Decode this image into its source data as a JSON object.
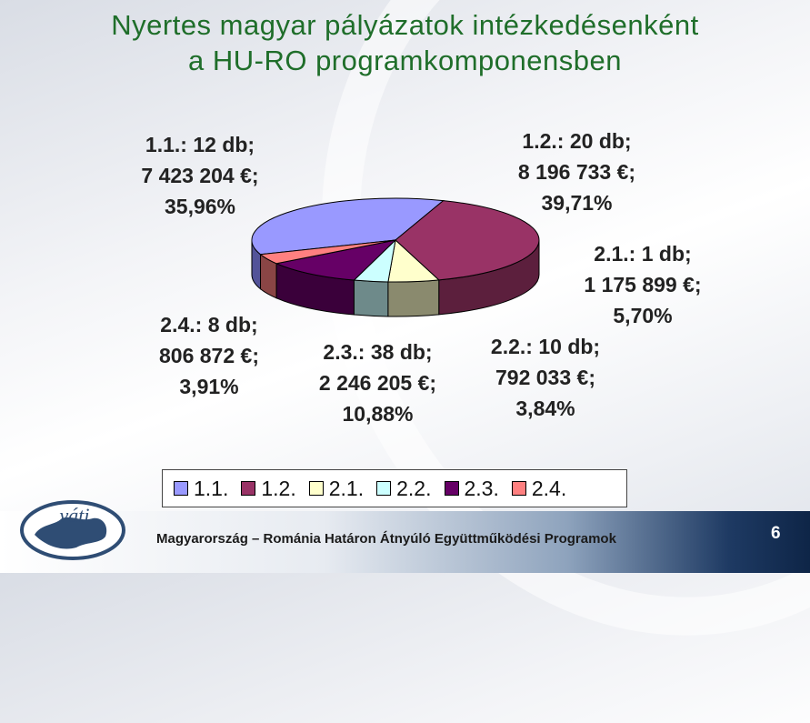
{
  "title_line1": "Nyertes magyar pályázatok intézkedésenként",
  "title_line2": "a HU-RO programkomponensben",
  "chart_data": {
    "type": "pie",
    "slices": [
      {
        "name": "1.1.",
        "count": "12 db;",
        "amount": "7 423 204 €;",
        "percent_label": "35,96%",
        "value": 35.96,
        "color": "#9999ff",
        "side": "#535399"
      },
      {
        "name": "1.2.",
        "count": "20 db;",
        "amount": "8 196 733 €;",
        "percent_label": "39,71%",
        "value": 39.71,
        "color": "#993366",
        "side": "#5c1f3d"
      },
      {
        "name": "2.1.",
        "count": "1 db;",
        "amount": "1 175 899 €;",
        "percent_label": "5,70%",
        "value": 5.7,
        "color": "#ffffcc",
        "side": "#8a8a6e"
      },
      {
        "name": "2.2.",
        "count": "10 db;",
        "amount": "792 033 €;",
        "percent_label": "3,84%",
        "value": 3.84,
        "color": "#ccffff",
        "side": "#6e8a8a"
      },
      {
        "name": "2.3.",
        "count": "38 db;",
        "amount": "2 246 205 €;",
        "percent_label": "10,88%",
        "value": 10.88,
        "color": "#660066",
        "side": "#3a003a"
      },
      {
        "name": "2.4.",
        "count": "8 db;",
        "amount": "806 872 €;",
        "percent_label": "3,91%",
        "value": 3.91,
        "color": "#ff8080",
        "side": "#8a4545"
      }
    ],
    "legend_position": "bottom"
  },
  "footer": {
    "text": "Magyarország – Románia Határon Átnyúló Együttműködési Programok",
    "page_number": "6",
    "logo_text": "váti"
  }
}
